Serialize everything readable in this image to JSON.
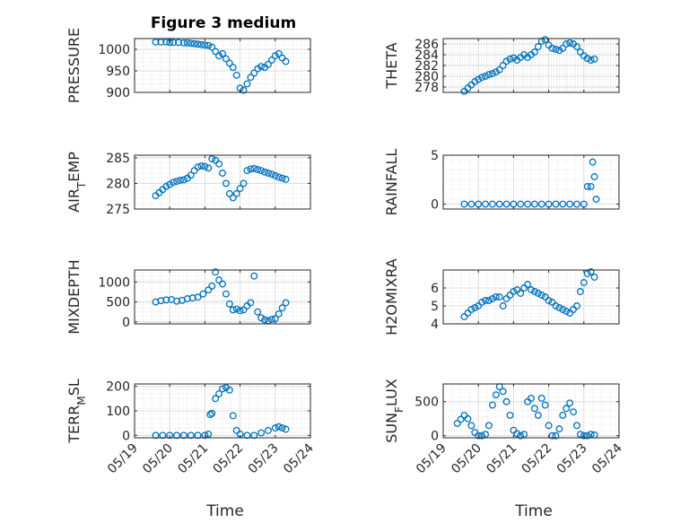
{
  "page": {
    "title": "Figure 3 medium",
    "xlabel": "Time"
  },
  "x_ticks": [
    "05/19",
    "05/20",
    "05/21",
    "05/22",
    "05/23",
    "05/24"
  ],
  "marker_color": "#0072bd",
  "chart_data": [
    {
      "type": "scatter",
      "ylabel": "PRESSURE",
      "ylim": [
        900,
        1025
      ],
      "yticks": [
        {
          "v": 900,
          "t": "900"
        },
        {
          "v": 950,
          "t": "950"
        },
        {
          "v": 1000,
          "t": "1000"
        }
      ],
      "xticklabels": false,
      "grid": true,
      "minor_grid": true,
      "series": [
        {
          "x": [
            19.6,
            19.75,
            19.9,
            20.0,
            20.1,
            20.25,
            20.4,
            20.5,
            20.6,
            20.7,
            20.8,
            20.9,
            21.0,
            21.1,
            21.2,
            21.3,
            21.4,
            21.5,
            21.6,
            21.7,
            21.8,
            21.9,
            22.0,
            22.1,
            22.2,
            22.3,
            22.4,
            22.5,
            22.6,
            22.7,
            22.8,
            22.9,
            23.0,
            23.1,
            23.2,
            23.3
          ],
          "y": [
            1017,
            1017,
            1017,
            1016,
            1016,
            1016,
            1015,
            1015,
            1014,
            1013,
            1012,
            1011,
            1010,
            1009,
            1005,
            995,
            985,
            990,
            978,
            968,
            958,
            940,
            910,
            905,
            920,
            935,
            945,
            955,
            960,
            958,
            965,
            975,
            985,
            990,
            980,
            972
          ]
        }
      ]
    },
    {
      "type": "scatter",
      "ylabel": "THETA",
      "ylim": [
        277,
        287
      ],
      "yticks": [
        {
          "v": 278,
          "t": "278"
        },
        {
          "v": 280,
          "t": "280"
        },
        {
          "v": 282,
          "t": "282"
        },
        {
          "v": 284,
          "t": "284"
        },
        {
          "v": 286,
          "t": "286"
        }
      ],
      "xticklabels": false,
      "grid": true,
      "minor_grid": true,
      "series": [
        {
          "x": [
            19.6,
            19.7,
            19.8,
            19.9,
            20.0,
            20.1,
            20.2,
            20.3,
            20.4,
            20.5,
            20.6,
            20.7,
            20.8,
            20.9,
            21.0,
            21.1,
            21.2,
            21.3,
            21.4,
            21.5,
            21.6,
            21.7,
            21.8,
            21.9,
            22.0,
            22.1,
            22.2,
            22.3,
            22.4,
            22.5,
            22.6,
            22.7,
            22.8,
            22.9,
            23.0,
            23.1,
            23.2,
            23.3
          ],
          "y": [
            277.2,
            277.8,
            278.4,
            279.0,
            279.4,
            279.8,
            280.0,
            280.3,
            280.5,
            280.8,
            281.2,
            282.0,
            282.8,
            283.2,
            283.4,
            283.0,
            283.5,
            284.0,
            283.5,
            284.0,
            284.5,
            285.5,
            286.5,
            286.8,
            285.8,
            285.2,
            285.0,
            284.8,
            285.2,
            286.0,
            286.2,
            286.0,
            285.5,
            284.5,
            283.8,
            283.3,
            283.0,
            283.2
          ]
        }
      ]
    },
    {
      "type": "scatter",
      "ylabel": "AIR_TEMP",
      "ylim": [
        275,
        285.5
      ],
      "yticks": [
        {
          "v": 275,
          "t": "275"
        },
        {
          "v": 280,
          "t": "280"
        },
        {
          "v": 285,
          "t": "285"
        }
      ],
      "xticklabels": false,
      "grid": true,
      "minor_grid": true,
      "series": [
        {
          "x": [
            19.6,
            19.7,
            19.8,
            19.9,
            20.0,
            20.1,
            20.2,
            20.3,
            20.4,
            20.5,
            20.6,
            20.7,
            20.8,
            20.9,
            21.0,
            21.1,
            21.2,
            21.3,
            21.4,
            21.5,
            21.6,
            21.7,
            21.8,
            21.9,
            22.0,
            22.1,
            22.2,
            22.3,
            22.4,
            22.5,
            22.6,
            22.7,
            22.8,
            22.9,
            23.0,
            23.1,
            23.2,
            23.3
          ],
          "y": [
            277.6,
            278.2,
            278.8,
            279.4,
            279.8,
            280.2,
            280.4,
            280.6,
            280.7,
            281.0,
            281.6,
            282.5,
            283.2,
            283.4,
            283.3,
            283.0,
            284.8,
            284.5,
            283.8,
            282.0,
            280.0,
            278.0,
            277.2,
            278.0,
            279.0,
            280.0,
            282.5,
            282.8,
            282.9,
            282.7,
            282.5,
            282.2,
            282.0,
            281.8,
            281.5,
            281.2,
            281.0,
            280.8
          ]
        }
      ]
    },
    {
      "type": "scatter",
      "ylabel": "RAINFALL",
      "ylim": [
        -0.5,
        5
      ],
      "yticks": [
        {
          "v": 0,
          "t": "0"
        },
        {
          "v": 5,
          "t": "5"
        }
      ],
      "xticklabels": false,
      "grid": true,
      "minor_grid": true,
      "series": [
        {
          "x": [
            19.6,
            19.8,
            20.0,
            20.2,
            20.4,
            20.6,
            20.8,
            21.0,
            21.2,
            21.4,
            21.6,
            21.8,
            22.0,
            22.2,
            22.4,
            22.6,
            22.8,
            23.0,
            23.1,
            23.2,
            23.25,
            23.3,
            23.35
          ],
          "y": [
            0,
            0,
            0,
            0,
            0,
            0,
            0,
            0,
            0,
            0,
            0,
            0,
            0,
            0,
            0,
            0,
            0,
            0,
            1.8,
            1.8,
            4.3,
            2.8,
            0.5
          ]
        }
      ]
    },
    {
      "type": "scatter",
      "ylabel": "MIXDEPTH",
      "ylim": [
        -50,
        1300
      ],
      "yticks": [
        {
          "v": 0,
          "t": "0"
        },
        {
          "v": 500,
          "t": "500"
        },
        {
          "v": 1000,
          "t": "1000"
        }
      ],
      "xticklabels": false,
      "grid": true,
      "minor_grid": true,
      "series": [
        {
          "x": [
            19.6,
            19.75,
            19.9,
            20.05,
            20.2,
            20.35,
            20.5,
            20.65,
            20.8,
            20.95,
            21.1,
            21.2,
            21.3,
            21.4,
            21.5,
            21.6,
            21.7,
            21.8,
            21.9,
            22.0,
            22.1,
            22.2,
            22.3,
            22.4,
            22.5,
            22.6,
            22.7,
            22.8,
            22.9,
            23.0,
            23.1,
            23.2,
            23.3
          ],
          "y": [
            500,
            530,
            550,
            560,
            520,
            540,
            580,
            600,
            620,
            700,
            800,
            900,
            1250,
            1050,
            950,
            700,
            450,
            300,
            320,
            280,
            300,
            400,
            480,
            1150,
            250,
            100,
            50,
            30,
            60,
            80,
            200,
            350,
            480
          ]
        }
      ]
    },
    {
      "type": "scatter",
      "ylabel": "H2OMIXRA",
      "ylim": [
        4,
        7
      ],
      "yticks": [
        {
          "v": 4,
          "t": "4"
        },
        {
          "v": 5,
          "t": "5"
        },
        {
          "v": 6,
          "t": "6"
        }
      ],
      "xticklabels": false,
      "grid": true,
      "minor_grid": true,
      "series": [
        {
          "x": [
            19.6,
            19.7,
            19.8,
            19.9,
            20.0,
            20.1,
            20.2,
            20.3,
            20.4,
            20.5,
            20.6,
            20.7,
            20.8,
            20.9,
            21.0,
            21.1,
            21.2,
            21.3,
            21.4,
            21.5,
            21.6,
            21.7,
            21.8,
            21.9,
            22.0,
            22.1,
            22.2,
            22.3,
            22.4,
            22.5,
            22.6,
            22.7,
            22.8,
            22.9,
            23.0,
            23.1,
            23.2,
            23.3
          ],
          "y": [
            4.4,
            4.6,
            4.8,
            4.9,
            5.0,
            5.2,
            5.3,
            5.3,
            5.4,
            5.5,
            5.5,
            5.0,
            5.4,
            5.6,
            5.8,
            5.9,
            5.7,
            6.0,
            6.2,
            5.9,
            5.8,
            5.7,
            5.6,
            5.5,
            5.3,
            5.2,
            5.0,
            4.9,
            4.8,
            4.7,
            4.6,
            4.8,
            5.0,
            5.8,
            6.3,
            6.8,
            6.9,
            6.6
          ]
        }
      ]
    },
    {
      "type": "scatter",
      "ylabel": "TERR_MSL",
      "ylim": [
        -10,
        210
      ],
      "yticks": [
        {
          "v": 0,
          "t": "0"
        },
        {
          "v": 100,
          "t": "100"
        },
        {
          "v": 200,
          "t": "200"
        }
      ],
      "xticklabels": true,
      "grid": true,
      "minor_grid": true,
      "series": [
        {
          "x": [
            19.6,
            19.8,
            20.0,
            20.2,
            20.4,
            20.6,
            20.8,
            21.0,
            21.1,
            21.15,
            21.2,
            21.3,
            21.4,
            21.5,
            21.6,
            21.7,
            21.8,
            21.9,
            22.0,
            22.2,
            22.4,
            22.6,
            22.8,
            23.0,
            23.1,
            23.2,
            23.3
          ],
          "y": [
            0,
            0,
            0,
            0,
            0,
            0,
            0,
            0,
            5,
            85,
            90,
            150,
            170,
            190,
            195,
            185,
            80,
            20,
            5,
            0,
            0,
            10,
            20,
            30,
            35,
            30,
            25
          ]
        }
      ]
    },
    {
      "type": "scatter",
      "ylabel": "SUN_FLUX",
      "ylim": [
        -30,
        760
      ],
      "yticks": [
        {
          "v": 0,
          "t": "0"
        },
        {
          "v": 500,
          "t": "500"
        }
      ],
      "xticklabels": true,
      "grid": true,
      "minor_grid": true,
      "series": [
        {
          "x": [
            19.4,
            19.5,
            19.6,
            19.7,
            19.8,
            19.9,
            20.0,
            20.1,
            20.2,
            20.3,
            20.4,
            20.5,
            20.6,
            20.7,
            20.8,
            20.9,
            21.0,
            21.1,
            21.2,
            21.3,
            21.4,
            21.5,
            21.6,
            21.7,
            21.8,
            21.9,
            22.0,
            22.1,
            22.2,
            22.3,
            22.4,
            22.5,
            22.6,
            22.7,
            22.8,
            22.9,
            23.0,
            23.1,
            23.2,
            23.3
          ],
          "y": [
            180,
            240,
            300,
            250,
            150,
            50,
            0,
            0,
            20,
            150,
            450,
            600,
            720,
            650,
            500,
            300,
            80,
            30,
            0,
            20,
            500,
            550,
            400,
            300,
            550,
            450,
            150,
            0,
            0,
            100,
            300,
            400,
            480,
            350,
            150,
            20,
            0,
            0,
            20,
            10
          ]
        }
      ]
    }
  ]
}
